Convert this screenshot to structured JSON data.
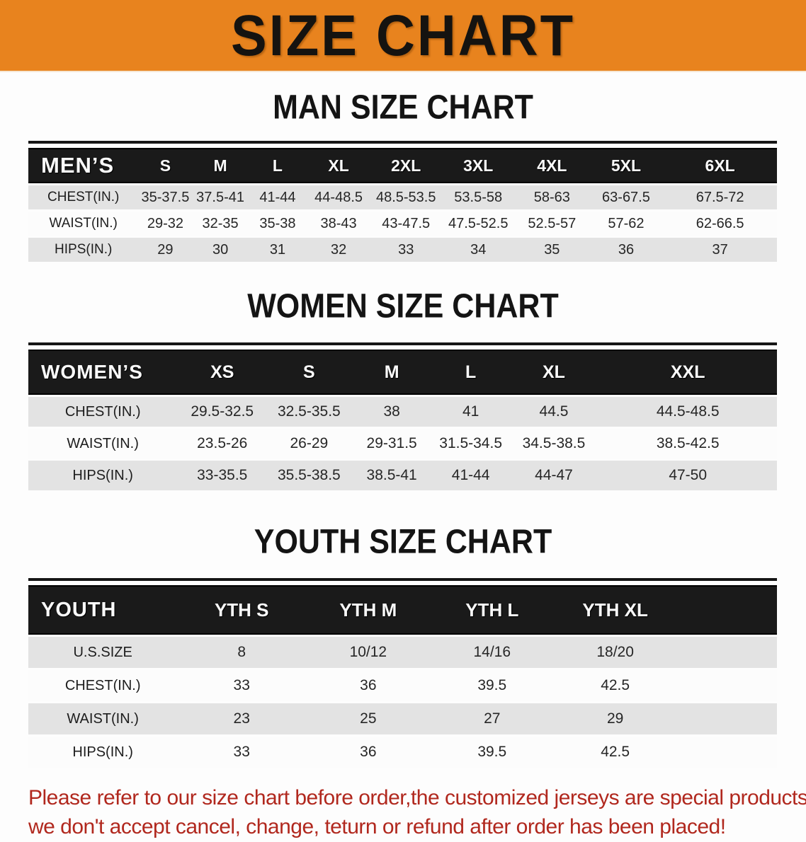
{
  "banner": {
    "title": "SIZE CHART"
  },
  "colors": {
    "banner_bg": "#e8831e",
    "table_header_bg": "#1a1a1a",
    "row_shade_bg": "#e3e3e3",
    "disclaimer_text": "#b1281e"
  },
  "sections": [
    {
      "id": "men",
      "title": "MAN SIZE CHART",
      "table": {
        "corner_label": "MEN’S",
        "columns": [
          "S",
          "M",
          "L",
          "XL",
          "2XL",
          "3XL",
          "4XL",
          "5XL",
          "6XL"
        ],
        "rows": [
          {
            "label": "CHEST(IN.)",
            "values": [
              "35-37.5",
              "37.5-41",
              "41-44",
              "44-48.5",
              "48.5-53.5",
              "53.5-58",
              "58-63",
              "63-67.5",
              "67.5-72"
            ]
          },
          {
            "label": "WAIST(IN.)",
            "values": [
              "29-32",
              "32-35",
              "35-38",
              "38-43",
              "43-47.5",
              "47.5-52.5",
              "52.5-57",
              "57-62",
              "62-66.5"
            ]
          },
          {
            "label": "HIPS(IN.)",
            "values": [
              "29",
              "30",
              "31",
              "32",
              "33",
              "34",
              "35",
              "36",
              "37"
            ]
          }
        ]
      }
    },
    {
      "id": "women",
      "title": "WOMEN SIZE CHART",
      "table": {
        "corner_label": "WOMEN’S",
        "columns": [
          "XS",
          "S",
          "M",
          "L",
          "XL",
          "XXL"
        ],
        "rows": [
          {
            "label": "CHEST(IN.)",
            "values": [
              "29.5-32.5",
              "32.5-35.5",
              "38",
              "41",
              "44.5",
              "44.5-48.5"
            ]
          },
          {
            "label": "WAIST(IN.)",
            "values": [
              "23.5-26",
              "26-29",
              "29-31.5",
              "31.5-34.5",
              "34.5-38.5",
              "38.5-42.5"
            ]
          },
          {
            "label": "HIPS(IN.)",
            "values": [
              "33-35.5",
              "35.5-38.5",
              "38.5-41",
              "41-44",
              "44-47",
              "47-50"
            ]
          }
        ]
      }
    },
    {
      "id": "youth",
      "title": "YOUTH SIZE CHART",
      "table": {
        "corner_label": "YOUTH",
        "columns": [
          "YTH S",
          "YTH M",
          "YTH L",
          "YTH XL"
        ],
        "rows": [
          {
            "label": "U.S.SIZE",
            "values": [
              "8",
              "10/12",
              "14/16",
              "18/20"
            ]
          },
          {
            "label": "CHEST(IN.)",
            "values": [
              "33",
              "36",
              "39.5",
              "42.5"
            ]
          },
          {
            "label": "WAIST(IN.)",
            "values": [
              "23",
              "25",
              "27",
              "29"
            ]
          },
          {
            "label": "HIPS(IN.)",
            "values": [
              "33",
              "36",
              "39.5",
              "42.5"
            ]
          }
        ]
      }
    }
  ],
  "disclaimer": {
    "line1": "Please refer to our size chart before order,the customized jerseys are special products,",
    "line2": "we don't accept cancel, change, teturn or refund after order has been placed!"
  }
}
